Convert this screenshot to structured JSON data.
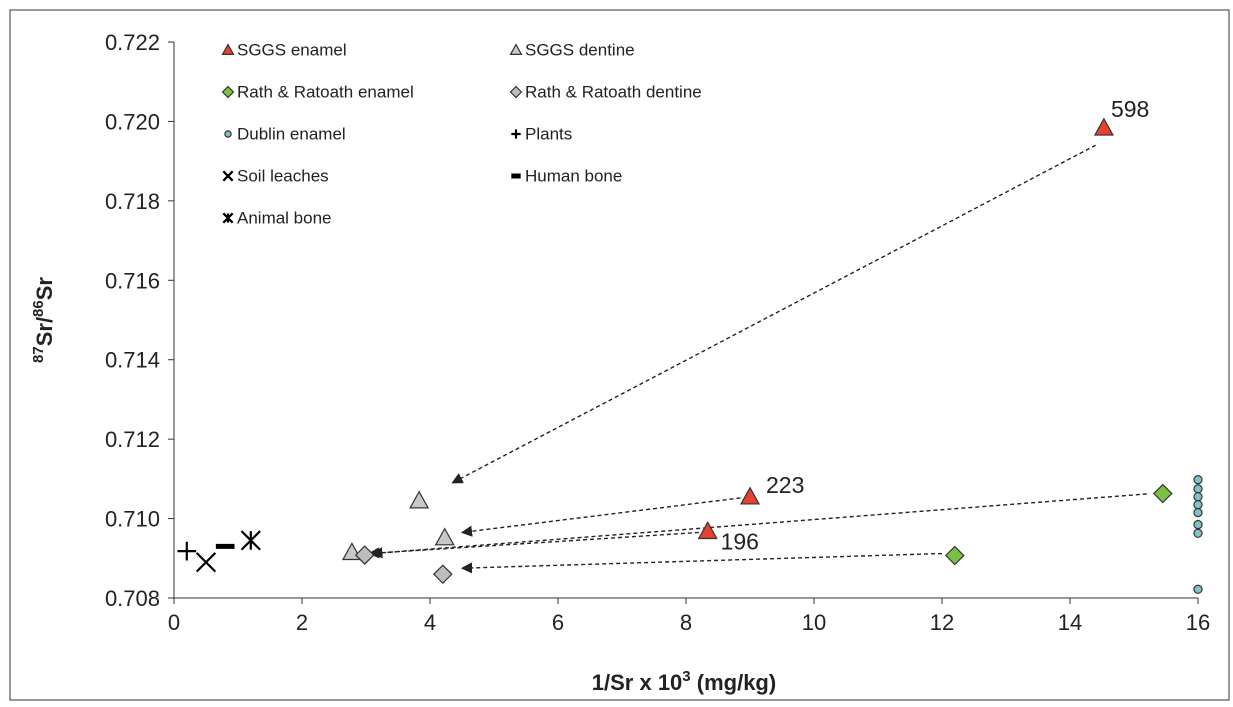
{
  "chart_data": {
    "type": "scatter",
    "xlabel_parts": [
      "1/Sr x 10",
      "3",
      " (mg/kg)"
    ],
    "ylabel_parts": [
      "87",
      "Sr/",
      "86",
      "Sr"
    ],
    "xlim": [
      0,
      16
    ],
    "xticks": [
      0,
      2,
      4,
      6,
      8,
      10,
      12,
      14,
      16
    ],
    "ylim": [
      0.708,
      0.722
    ],
    "yticks": [
      0.708,
      {
        "value": 0.71,
        "label": "0.710"
      },
      0.712,
      0.714,
      0.716,
      0.718,
      {
        "value": 0.72,
        "label": "0.720"
      },
      0.722
    ],
    "legend": "top-left",
    "series": [
      {
        "name": "SGGS enamel",
        "marker": "triangle",
        "color": "#e8412c",
        "x": [
          14.53,
          9.0,
          8.34
        ],
        "values": [
          0.71984,
          0.71055,
          0.70968
        ]
      },
      {
        "name": "SGGS dentine",
        "marker": "triangle",
        "color": "#c8c8c8",
        "x": [
          3.83,
          4.23,
          2.78
        ],
        "values": [
          0.71045,
          0.70952,
          0.70915
        ]
      },
      {
        "name": "Rath & Ratoath enamel",
        "marker": "diamond",
        "color": "#7ac143",
        "x": [
          15.45,
          12.2
        ],
        "values": [
          0.71063,
          0.70907
        ]
      },
      {
        "name": "Rath & Ratoath dentine",
        "marker": "diamond",
        "color": "#bdbdbd",
        "x": [
          2.98,
          4.2
        ],
        "values": [
          0.70908,
          0.7086
        ]
      },
      {
        "name": "Dublin enamel",
        "marker": "circle",
        "color": "#7fc4c6",
        "x": [
          16,
          16,
          16,
          16,
          16,
          16,
          16,
          16
        ],
        "values": [
          0.71098,
          0.71075,
          0.71055,
          0.71035,
          0.71015,
          0.70985,
          0.70963,
          0.70822
        ]
      },
      {
        "name": "Plants",
        "marker": "plus",
        "color": "#000000",
        "x": [
          0.2
        ],
        "values": [
          0.70918
        ]
      },
      {
        "name": "Soil leaches",
        "marker": "x",
        "color": "#000000",
        "x": [
          0.5
        ],
        "values": [
          0.7089
        ]
      },
      {
        "name": "Human bone",
        "marker": "dash",
        "color": "#000000",
        "x": [
          0.8
        ],
        "values": [
          0.7093
        ]
      },
      {
        "name": "Animal bone",
        "marker": "asterisk",
        "color": "#000000",
        "x": [
          1.2
        ],
        "values": [
          0.70945
        ]
      }
    ],
    "annotations": [
      {
        "text": "598",
        "x": 14.94,
        "y": 0.72026
      },
      {
        "text": "223",
        "x": 9.55,
        "y": 0.7108
      },
      {
        "text": "196",
        "x": 8.84,
        "y": 0.70938
      }
    ],
    "arrows": [
      {
        "from": [
          14.4,
          0.7194
        ],
        "to": [
          4.35,
          0.7109
        ]
      },
      {
        "from": [
          8.85,
          0.71052
        ],
        "to": [
          4.5,
          0.70965
        ]
      },
      {
        "from": [
          8.2,
          0.70965
        ],
        "to": [
          3.05,
          0.70912
        ]
      },
      {
        "from": [
          15.2,
          0.71062
        ],
        "to": [
          3.1,
          0.70912
        ]
      },
      {
        "from": [
          12.0,
          0.70912
        ],
        "to": [
          4.5,
          0.70875
        ]
      }
    ]
  }
}
